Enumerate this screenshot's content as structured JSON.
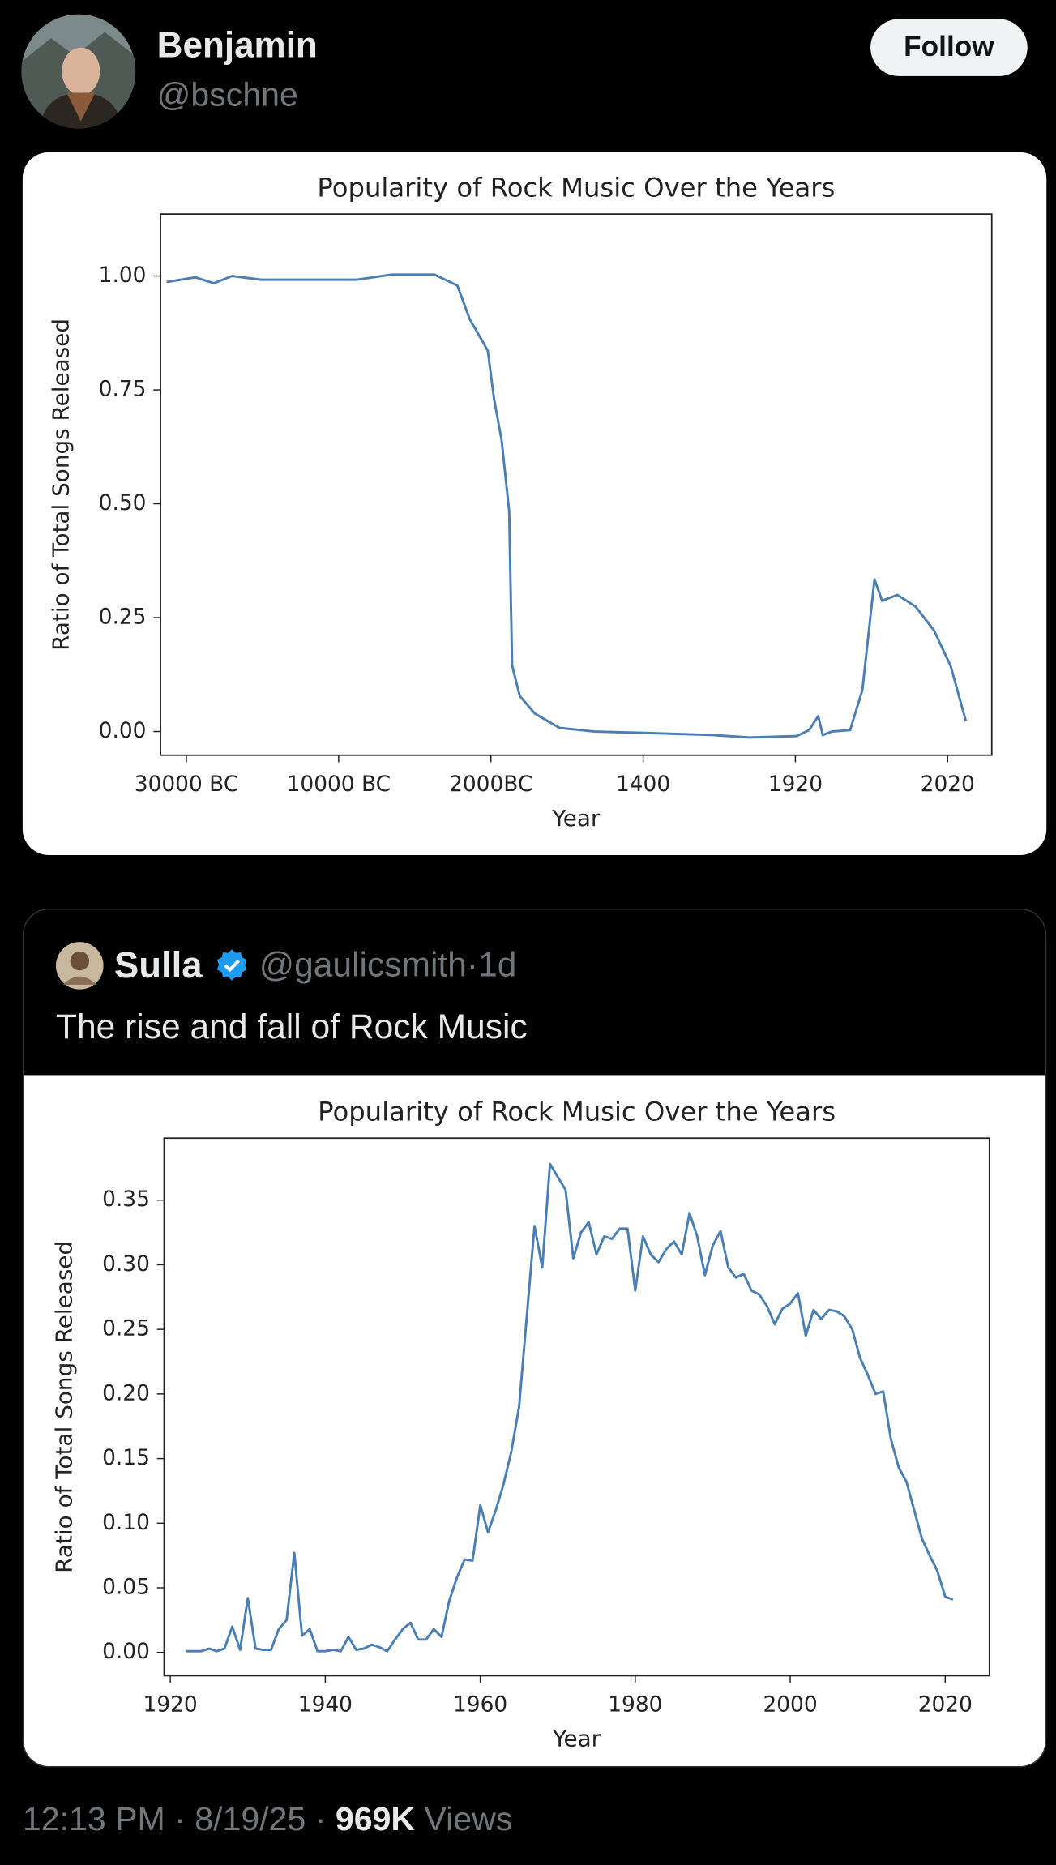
{
  "author": {
    "name": "Benjamin",
    "handle": "@bschne"
  },
  "follow": "Follow",
  "separator": "·",
  "quote": {
    "name": "Sulla",
    "handle": "@gaulicsmith",
    "time": "1d",
    "text": "The rise and fall of Rock Music"
  },
  "meta": {
    "time": "12:13 PM",
    "date": "8/19/25",
    "views": "969K",
    "views_label": "Views"
  },
  "chart_data": [
    {
      "type": "line",
      "title": "Popularity of Rock Music Over the Years",
      "xlabel": "Year",
      "ylabel": "Ratio of Total Songs Released",
      "color": "#4a7fb5",
      "x": [
        -0.13,
        0.06,
        0.18,
        0.3,
        0.49,
        0.8,
        1.12,
        1.35,
        1.63,
        1.78,
        1.86,
        1.98,
        2.02,
        2.07,
        2.12,
        2.13,
        2.14,
        2.19,
        2.29,
        2.45,
        2.68,
        2.99,
        3.46,
        3.7,
        4.01,
        4.09,
        4.15,
        4.18,
        4.24,
        4.36,
        4.44,
        4.52,
        4.57,
        4.67,
        4.79,
        4.91,
        5.02,
        5.12
      ],
      "values": [
        0.987,
        0.997,
        0.984,
        1.0,
        0.992,
        0.992,
        0.992,
        1.003,
        1.003,
        0.979,
        0.906,
        0.836,
        0.731,
        0.64,
        0.483,
        0.3,
        0.144,
        0.078,
        0.039,
        0.008,
        0,
        -0.003,
        -0.008,
        -0.013,
        -0.01,
        0.003,
        0.034,
        -0.008,
        0,
        0.003,
        0.091,
        0.334,
        0.287,
        0.3,
        0.274,
        0.222,
        0.144,
        0.023
      ],
      "xlim": [
        -0.17,
        5.29
      ],
      "xticks": [
        {
          "value": 0,
          "label": "30000 BC"
        },
        {
          "value": 1,
          "label": "10000 BC"
        },
        {
          "value": 2,
          "label": "2000BC"
        },
        {
          "value": 3,
          "label": "1400"
        },
        {
          "value": 4,
          "label": "1920"
        },
        {
          "value": 5,
          "label": "2020"
        }
      ],
      "ylim": [
        -0.052,
        1.136
      ],
      "yticks": [
        {
          "value": 0,
          "label": "0.00"
        },
        {
          "value": 0.25,
          "label": "0.25"
        },
        {
          "value": 0.5,
          "label": "0.50"
        },
        {
          "value": 0.75,
          "label": "0.75"
        },
        {
          "value": 1,
          "label": "1.00"
        }
      ]
    },
    {
      "type": "line",
      "title": "Popularity of Rock Music Over the Years",
      "xlabel": "Year",
      "ylabel": "Ratio of Total Songs Released",
      "color": "#4a7fb5",
      "x": [
        1922,
        1923,
        1924,
        1925,
        1926,
        1927,
        1928,
        1929,
        1930,
        1931,
        1932,
        1933,
        1934,
        1935,
        1936,
        1937,
        1938,
        1939,
        1940,
        1941,
        1942,
        1943,
        1944,
        1945,
        1946,
        1947,
        1948,
        1949,
        1950,
        1951,
        1952,
        1953,
        1954,
        1955,
        1956,
        1957,
        1958,
        1959,
        1960,
        1961,
        1962,
        1963,
        1964,
        1965,
        1966,
        1967,
        1968,
        1969,
        1970,
        1971,
        1972,
        1973,
        1974,
        1975,
        1976,
        1977,
        1978,
        1979,
        1980,
        1981,
        1982,
        1983,
        1984,
        1985,
        1986,
        1987,
        1988,
        1989,
        1990,
        1991,
        1992,
        1993,
        1994,
        1995,
        1996,
        1997,
        1998,
        1999,
        2000,
        2001,
        2002,
        2003,
        2004,
        2005,
        2006,
        2007,
        2008,
        2009,
        2010,
        2011,
        2012,
        2013,
        2014,
        2015,
        2016,
        2017,
        2018,
        2019,
        2020,
        2021
      ],
      "values": [
        0.001,
        0.001,
        0.001,
        0.003,
        0.001,
        0.003,
        0.02,
        0.002,
        0.042,
        0.003,
        0.002,
        0.002,
        0.018,
        0.025,
        0.077,
        0.013,
        0.018,
        0.001,
        0.001,
        0.002,
        0.001,
        0.012,
        0.002,
        0.003,
        0.006,
        0.004,
        0.001,
        0.01,
        0.018,
        0.023,
        0.01,
        0.01,
        0.018,
        0.012,
        0.04,
        0.058,
        0.072,
        0.071,
        0.114,
        0.093,
        0.11,
        0.13,
        0.155,
        0.19,
        0.26,
        0.33,
        0.298,
        0.378,
        0.368,
        0.358,
        0.305,
        0.325,
        0.333,
        0.308,
        0.322,
        0.32,
        0.328,
        0.328,
        0.28,
        0.322,
        0.308,
        0.302,
        0.312,
        0.318,
        0.308,
        0.34,
        0.322,
        0.292,
        0.315,
        0.326,
        0.298,
        0.29,
        0.293,
        0.28,
        0.277,
        0.268,
        0.254,
        0.266,
        0.27,
        0.278,
        0.245,
        0.265,
        0.258,
        0.265,
        0.264,
        0.26,
        0.25,
        0.228,
        0.215,
        0.2,
        0.202,
        0.165,
        0.143,
        0.132,
        0.11,
        0.088,
        0.075,
        0.063,
        0.043,
        0.041
      ],
      "xlim": [
        1919.2,
        2025.7
      ],
      "xticks": [
        1920,
        1940,
        1960,
        1980,
        2000,
        2020
      ],
      "ylim": [
        -0.018,
        0.398
      ],
      "yticks": [
        {
          "value": 0,
          "label": "0.00"
        },
        {
          "value": 0.05,
          "label": "0.05"
        },
        {
          "value": 0.1,
          "label": "0.10"
        },
        {
          "value": 0.15,
          "label": "0.15"
        },
        {
          "value": 0.2,
          "label": "0.20"
        },
        {
          "value": 0.25,
          "label": "0.25"
        },
        {
          "value": 0.3,
          "label": "0.30"
        },
        {
          "value": 0.35,
          "label": "0.35"
        }
      ]
    }
  ]
}
